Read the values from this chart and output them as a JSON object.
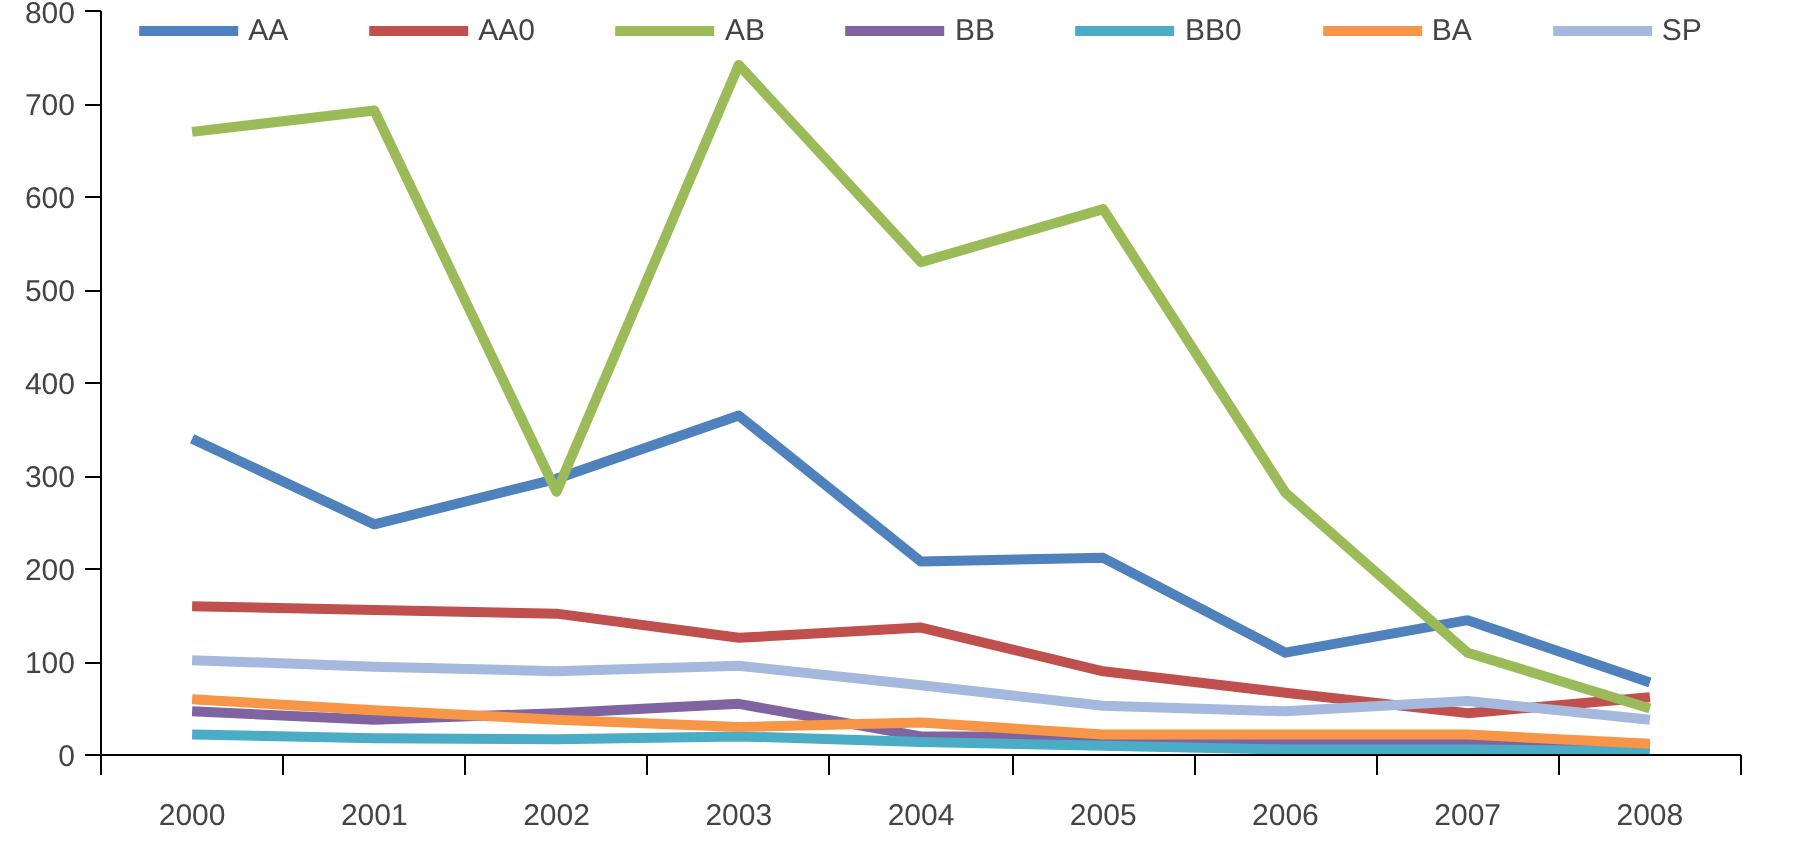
{
  "chart_data": {
    "type": "line",
    "categories": [
      "2000",
      "2001",
      "2002",
      "2003",
      "2004",
      "2005",
      "2006",
      "2007",
      "2008"
    ],
    "series": [
      {
        "name": "AA",
        "color": "#4f81bd",
        "values": [
          340,
          248,
          297,
          365,
          208,
          212,
          110,
          145,
          78
        ]
      },
      {
        "name": "AA0",
        "color": "#c0504d",
        "values": [
          160,
          156,
          152,
          126,
          137,
          90,
          67,
          45,
          62
        ]
      },
      {
        "name": "AB",
        "color": "#9bbb59",
        "values": [
          670,
          693,
          283,
          742,
          530,
          587,
          282,
          110,
          50
        ]
      },
      {
        "name": "BB",
        "color": "#8064a2",
        "values": [
          47,
          38,
          45,
          55,
          20,
          20,
          12,
          12,
          10
        ]
      },
      {
        "name": "BB0",
        "color": "#4bacc6",
        "values": [
          22,
          18,
          17,
          20,
          14,
          10,
          6,
          6,
          4
        ]
      },
      {
        "name": "BA",
        "color": "#f79646",
        "values": [
          60,
          48,
          38,
          30,
          35,
          22,
          22,
          22,
          12
        ]
      },
      {
        "name": "SP",
        "color": "#a5b8dd",
        "values": [
          102,
          95,
          90,
          96,
          75,
          53,
          47,
          58,
          38
        ]
      }
    ],
    "ylim": [
      0,
      800
    ],
    "yticks": [
      0,
      100,
      200,
      300,
      400,
      500,
      600,
      700,
      800
    ],
    "grid": false,
    "legend": "top",
    "marker": "none",
    "line_style": "solid"
  }
}
